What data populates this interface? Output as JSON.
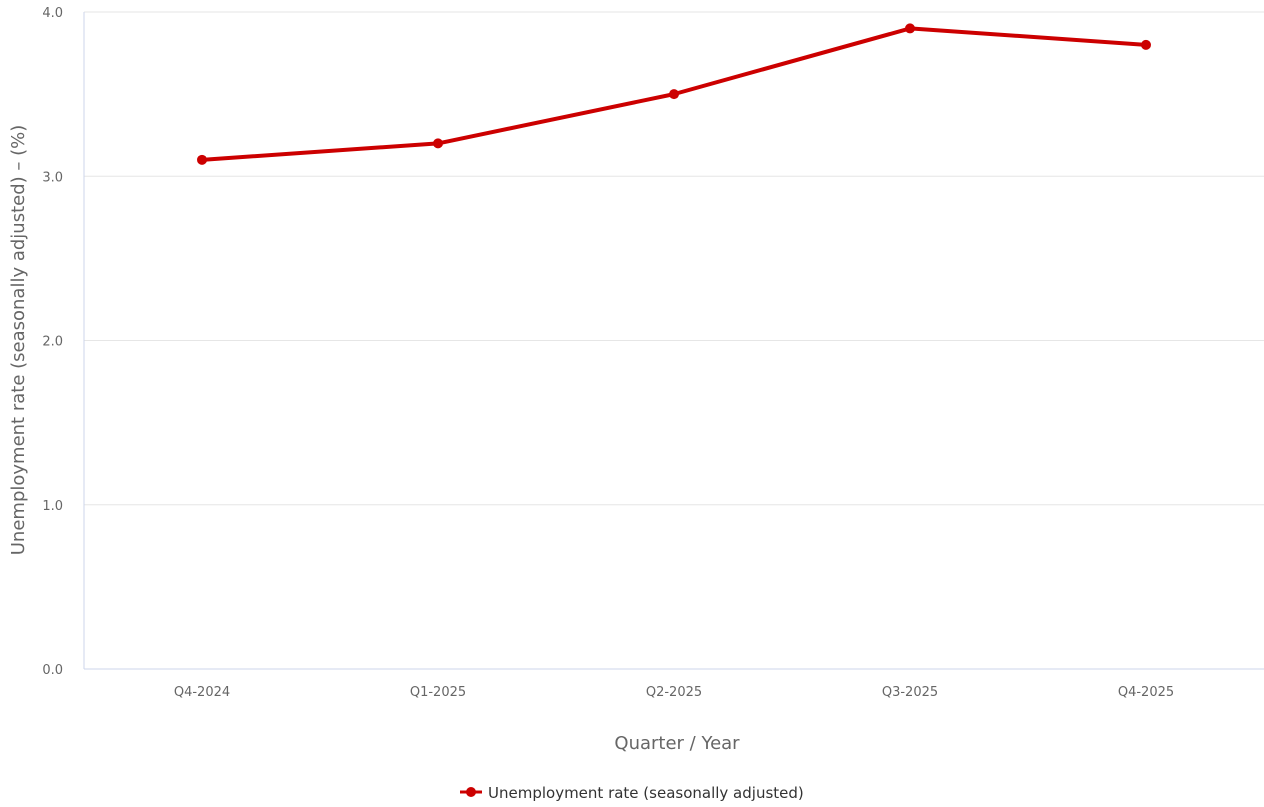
{
  "chart_data": {
    "type": "line",
    "categories": [
      "Q4-2024",
      "Q1-2025",
      "Q2-2025",
      "Q3-2025",
      "Q4-2025"
    ],
    "series": [
      {
        "name": "Unemployment rate (seasonally adjusted)",
        "values": [
          3.1,
          3.2,
          3.5,
          3.9,
          3.8
        ],
        "color": "#cc0000"
      }
    ],
    "xlabel": "Quarter / Year",
    "ylabel": "Unemployment rate (seasonally adjusted) – (%)",
    "ylim": [
      0,
      4
    ],
    "yticks": [
      "0.0",
      "1.0",
      "2.0",
      "3.0",
      "4.0"
    ],
    "grid": true,
    "legend_position": "bottom-center"
  }
}
